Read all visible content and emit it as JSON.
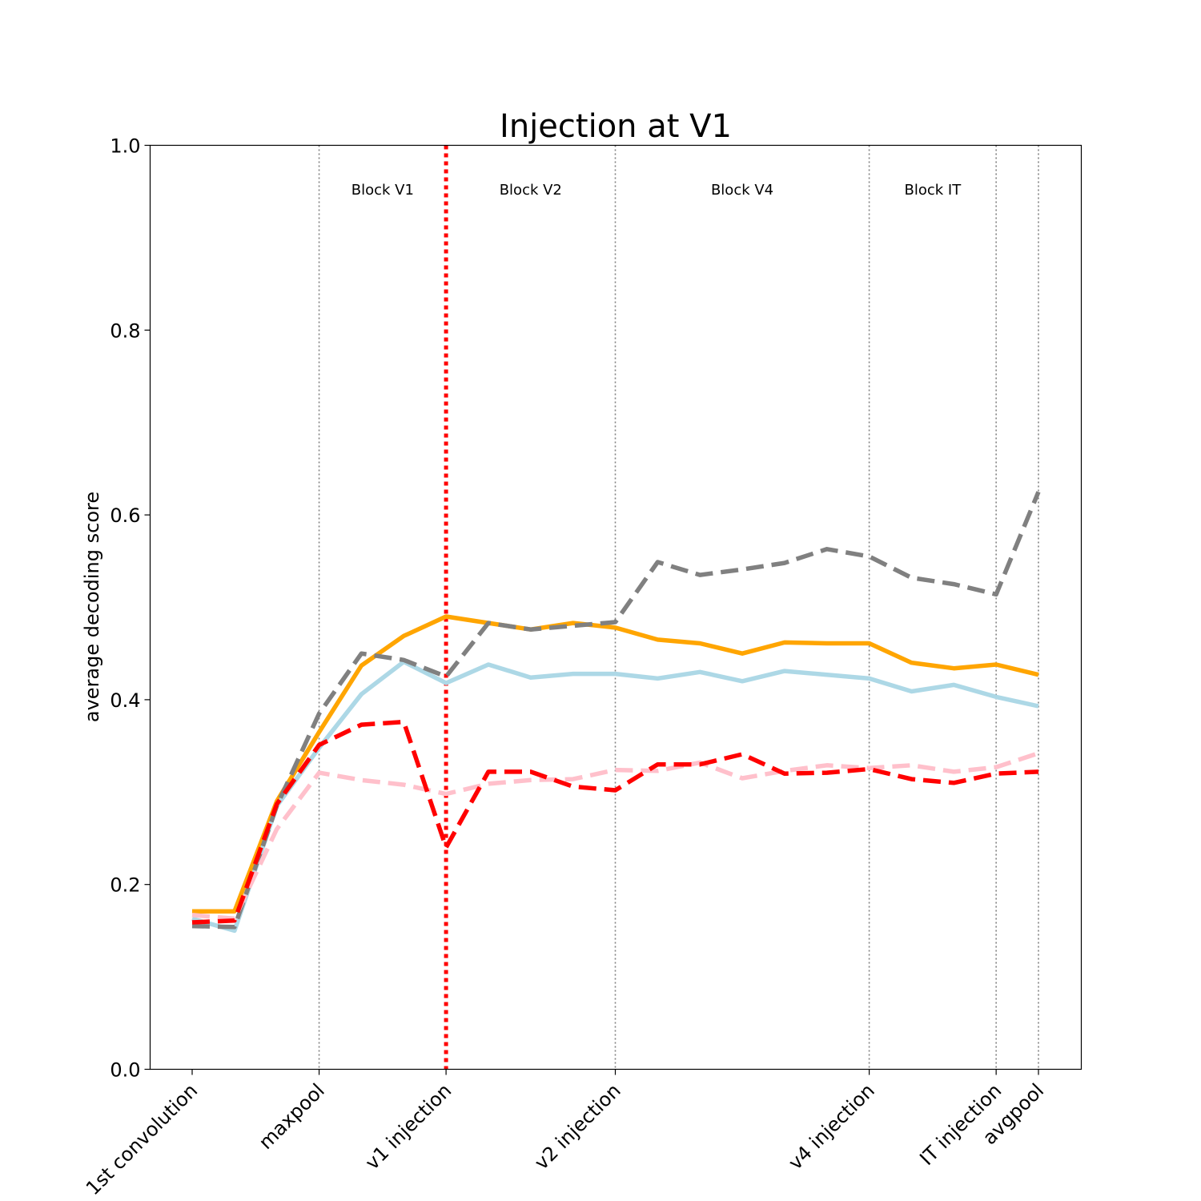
{
  "chart_data": {
    "type": "line",
    "title": "Injection at V1",
    "xlabel": "",
    "ylabel": "average decoding score",
    "ylim": [
      0,
      1
    ],
    "yticks": [
      "0.0",
      "0.2",
      "0.4",
      "0.6",
      "0.8",
      "1.0"
    ],
    "x_count": 21,
    "xtick_labels": [
      {
        "index": 0,
        "label": "1st convolution"
      },
      {
        "index": 3,
        "label": "maxpool"
      },
      {
        "index": 6,
        "label": "v1 injection"
      },
      {
        "index": 10,
        "label": "v2 injection"
      },
      {
        "index": 16,
        "label": "v4 injection"
      },
      {
        "index": 19,
        "label": "IT injection"
      },
      {
        "index": 20,
        "label": "avgpool"
      }
    ],
    "block_boundaries": [
      3,
      6,
      10,
      16,
      19,
      20
    ],
    "injection_index": 6,
    "block_labels": [
      {
        "label": "Block V1",
        "center": 4.5
      },
      {
        "label": "Block V2",
        "center": 8.0
      },
      {
        "label": "Block V4",
        "center": 13.0
      },
      {
        "label": "Block IT",
        "center": 17.5
      }
    ],
    "series": [
      {
        "color": "#ffa500",
        "dash": "solid",
        "values": [
          0.171,
          0.171,
          0.29,
          0.365,
          0.437,
          0.469,
          0.49,
          0.483,
          0.476,
          0.483,
          0.478,
          0.465,
          0.461,
          0.45,
          0.462,
          0.461,
          0.461,
          0.44,
          0.434,
          0.438,
          0.427
        ]
      },
      {
        "color": "#add8e6",
        "dash": "solid",
        "values": [
          0.163,
          0.15,
          0.285,
          0.348,
          0.406,
          0.441,
          0.418,
          0.438,
          0.424,
          0.428,
          0.428,
          0.423,
          0.43,
          0.42,
          0.431,
          0.427,
          0.423,
          0.409,
          0.416,
          0.403,
          0.393
        ]
      },
      {
        "color": "#808080",
        "dash": "dashed",
        "values": [
          0.155,
          0.154,
          0.285,
          0.385,
          0.45,
          0.443,
          0.425,
          0.483,
          0.476,
          0.48,
          0.484,
          0.549,
          0.535,
          0.541,
          0.548,
          0.563,
          0.555,
          0.532,
          0.525,
          0.514,
          0.625
        ]
      },
      {
        "color": "#ffc0cb",
        "dash": "dashed",
        "values": [
          0.167,
          0.163,
          0.26,
          0.321,
          0.313,
          0.308,
          0.298,
          0.309,
          0.313,
          0.314,
          0.324,
          0.323,
          0.332,
          0.315,
          0.323,
          0.329,
          0.326,
          0.329,
          0.322,
          0.327,
          0.342
        ]
      },
      {
        "color": "#ff0000",
        "dash": "dashed",
        "values": [
          0.159,
          0.161,
          0.287,
          0.351,
          0.373,
          0.376,
          0.24,
          0.322,
          0.322,
          0.306,
          0.302,
          0.33,
          0.33,
          0.341,
          0.32,
          0.321,
          0.325,
          0.314,
          0.31,
          0.32,
          0.322
        ]
      }
    ]
  }
}
